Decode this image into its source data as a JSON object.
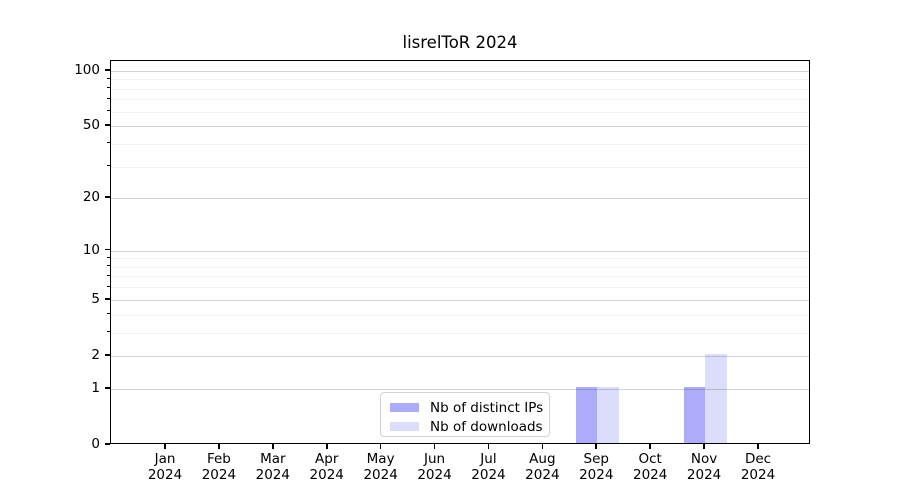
{
  "chart_data": {
    "type": "bar",
    "title": "lisrelToR 2024",
    "categories": [
      "Jan",
      "Feb",
      "Mar",
      "Apr",
      "May",
      "Jun",
      "Jul",
      "Aug",
      "Sep",
      "Oct",
      "Nov",
      "Dec"
    ],
    "x_sublabel": "2024",
    "series": [
      {
        "name": "Nb of distinct IPs",
        "color": "#acacf8",
        "values": [
          0,
          0,
          0,
          0,
          0,
          0,
          0,
          0,
          1,
          0,
          1,
          0
        ]
      },
      {
        "name": "Nb of downloads",
        "color": "#dcdcfb",
        "values": [
          0,
          0,
          0,
          0,
          0,
          0,
          0,
          0,
          1,
          0,
          2,
          0
        ]
      }
    ],
    "xlabel": "",
    "ylabel": "",
    "y_scale": "log1p",
    "ylim": [
      0,
      113
    ],
    "y_major_ticks": [
      0,
      1,
      2,
      5,
      10,
      20,
      50,
      100
    ],
    "y_minor_ticks": [
      3,
      4,
      6,
      7,
      8,
      9,
      30,
      40,
      60,
      70,
      80,
      90
    ],
    "grid": "horizontal-only",
    "legend_position": "lower center"
  },
  "colors": {
    "background": "#ffffff",
    "axis": "#000000",
    "text": "#000000",
    "legend_border": "#d3d3d3"
  }
}
